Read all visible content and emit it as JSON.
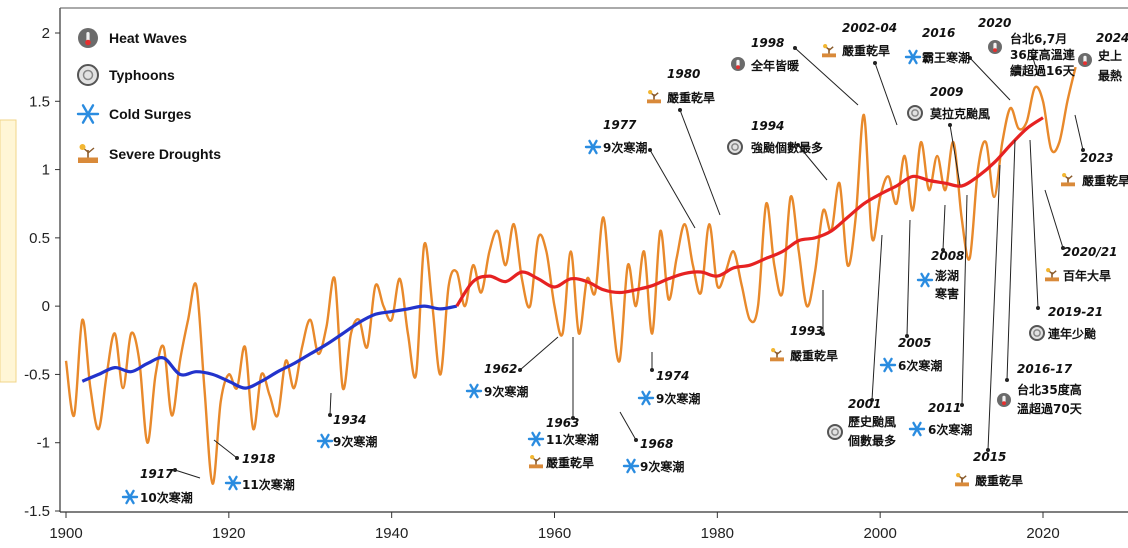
{
  "chart_data": {
    "type": "line",
    "title": "",
    "xlabel": "",
    "ylabel": "",
    "xlim": [
      1900,
      2026
    ],
    "ylim": [
      -1.5,
      2
    ],
    "x_ticks": [
      "1900",
      "1920",
      "1940",
      "1960",
      "1980",
      "2000",
      "2020"
    ],
    "y_ticks": [
      "-1.5",
      "-1",
      "-0.5",
      "0",
      "0.5",
      "1",
      "1.5",
      "2"
    ],
    "grid": false,
    "legend": {
      "placement": "top-left",
      "items": [
        {
          "label": "Heat Waves",
          "icon": "thermometer-icon"
        },
        {
          "label": "Typhoons",
          "icon": "typhoon-icon"
        },
        {
          "label": "Cold Surges",
          "icon": "snowflake-icon"
        },
        {
          "label": "Severe Droughts",
          "icon": "drought-icon"
        }
      ]
    },
    "series": [
      {
        "role": "annual",
        "color": "#e8892b",
        "x": [
          1900,
          1901,
          1902,
          1903,
          1904,
          1905,
          1906,
          1907,
          1908,
          1909,
          1910,
          1911,
          1912,
          1913,
          1914,
          1915,
          1916,
          1917,
          1918,
          1919,
          1920,
          1921,
          1922,
          1923,
          1924,
          1925,
          1926,
          1927,
          1928,
          1929,
          1930,
          1931,
          1932,
          1933,
          1934,
          1935,
          1936,
          1937,
          1938,
          1939,
          1940,
          1941,
          1942,
          1943,
          1944,
          1945,
          1946,
          1947,
          1948,
          1949,
          1950,
          1951,
          1952,
          1953,
          1954,
          1955,
          1956,
          1957,
          1958,
          1959,
          1960,
          1961,
          1962,
          1963,
          1964,
          1965,
          1966,
          1967,
          1968,
          1969,
          1970,
          1971,
          1972,
          1973,
          1974,
          1975,
          1976,
          1977,
          1978,
          1979,
          1980,
          1981,
          1982,
          1983,
          1984,
          1985,
          1986,
          1987,
          1988,
          1989,
          1990,
          1991,
          1992,
          1993,
          1994,
          1995,
          1996,
          1997,
          1998,
          1999,
          2000,
          2001,
          2002,
          2003,
          2004,
          2005,
          2006,
          2007,
          2008,
          2009,
          2010,
          2011,
          2012,
          2013,
          2014,
          2015,
          2016,
          2017,
          2018,
          2019,
          2020,
          2021,
          2022,
          2023,
          2024
        ],
        "y": [
          -0.4,
          -0.8,
          -0.1,
          -0.6,
          -0.9,
          -0.5,
          -0.2,
          -0.6,
          -0.2,
          -0.4,
          -1.0,
          -0.5,
          -0.3,
          -0.8,
          -0.4,
          -0.1,
          0.15,
          -0.6,
          -1.3,
          -0.7,
          -0.5,
          -0.6,
          -0.3,
          -0.9,
          -0.5,
          -0.65,
          -0.8,
          -0.4,
          -0.6,
          -0.3,
          -0.1,
          -0.35,
          -0.15,
          0.2,
          -0.6,
          -0.2,
          -0.1,
          -0.3,
          0.15,
          0.0,
          -0.1,
          0.2,
          -0.2,
          -0.5,
          0.45,
          0.0,
          -0.5,
          0.15,
          0.25,
          0.0,
          0.3,
          0.1,
          0.4,
          0.55,
          0.3,
          0.6,
          0.2,
          0.0,
          0.5,
          0.4,
          0.0,
          -0.2,
          0.4,
          -0.2,
          0.2,
          0.1,
          0.65,
          0.0,
          -0.4,
          0.3,
          0.0,
          0.4,
          -0.2,
          0.55,
          0.05,
          0.35,
          0.6,
          0.3,
          0.1,
          0.6,
          0.15,
          0.25,
          0.4,
          0.15,
          -0.1,
          0.0,
          0.75,
          0.3,
          0.1,
          0.8,
          0.4,
          0.0,
          0.25,
          0.7,
          0.55,
          0.9,
          0.3,
          0.65,
          1.4,
          0.5,
          0.8,
          0.95,
          0.75,
          1.1,
          0.7,
          1.2,
          0.85,
          1.1,
          0.85,
          1.2,
          0.65,
          0.35,
          1.0,
          1.2,
          0.8,
          1.2,
          1.45,
          1.3,
          1.35,
          1.6,
          1.5,
          1.15,
          1.2,
          1.5,
          1.75
        ]
      },
      {
        "role": "trend-early",
        "color": "#2233cc",
        "x": [
          1902,
          1904,
          1906,
          1908,
          1910,
          1912,
          1914,
          1916,
          1918,
          1920,
          1922,
          1924,
          1926,
          1928,
          1930,
          1932,
          1934,
          1936,
          1938,
          1940,
          1942,
          1944,
          1946,
          1948
        ],
        "y": [
          -0.55,
          -0.5,
          -0.45,
          -0.48,
          -0.42,
          -0.38,
          -0.5,
          -0.48,
          -0.5,
          -0.55,
          -0.6,
          -0.55,
          -0.48,
          -0.42,
          -0.35,
          -0.28,
          -0.2,
          -0.12,
          -0.06,
          -0.04,
          -0.02,
          0.0,
          -0.02,
          0.0
        ]
      },
      {
        "role": "trend-late",
        "color": "#e62222",
        "x": [
          1948,
          1950,
          1952,
          1954,
          1956,
          1958,
          1960,
          1962,
          1964,
          1966,
          1968,
          1970,
          1972,
          1974,
          1976,
          1978,
          1980,
          1982,
          1984,
          1986,
          1988,
          1990,
          1992,
          1994,
          1996,
          1998,
          2000,
          2002,
          2004,
          2006,
          2008,
          2010,
          2012,
          2014,
          2016,
          2018,
          2020
        ],
        "y": [
          0.0,
          0.18,
          0.22,
          0.18,
          0.25,
          0.2,
          0.14,
          0.2,
          0.18,
          0.12,
          0.1,
          0.12,
          0.15,
          0.2,
          0.24,
          0.25,
          0.22,
          0.28,
          0.3,
          0.35,
          0.4,
          0.48,
          0.5,
          0.55,
          0.65,
          0.75,
          0.82,
          0.88,
          0.95,
          0.92,
          0.9,
          0.88,
          0.95,
          1.05,
          1.18,
          1.3,
          1.38
        ]
      }
    ],
    "annotations": [
      {
        "year": "1917",
        "desc": "10次寒潮",
        "icon": "snowflake-icon"
      },
      {
        "year": "1918",
        "desc": "11次寒潮",
        "icon": "snowflake-icon"
      },
      {
        "year": "1934",
        "desc": "9次寒潮",
        "icon": "snowflake-icon"
      },
      {
        "year": "1962",
        "desc": "9次寒潮",
        "icon": "snowflake-icon"
      },
      {
        "year": "1963",
        "desc": "11次寒潮",
        "desc2": "嚴重乾旱",
        "icon": "snowflake-icon",
        "icon2": "drought-icon"
      },
      {
        "year": "1968",
        "desc": "9次寒潮",
        "icon": "snowflake-icon"
      },
      {
        "year": "1974",
        "desc": "9次寒潮",
        "icon": "snowflake-icon"
      },
      {
        "year": "1977",
        "desc": "9次寒潮",
        "icon": "snowflake-icon"
      },
      {
        "year": "1980",
        "desc": "嚴重乾旱",
        "icon": "drought-icon"
      },
      {
        "year": "1993",
        "desc": "嚴重乾旱",
        "icon": "drought-icon"
      },
      {
        "year": "1994",
        "desc": "強颱個數最多",
        "icon": "typhoon-icon"
      },
      {
        "year": "1998",
        "desc": "全年皆暖",
        "icon": "thermometer-icon"
      },
      {
        "year": "2001",
        "desc": "歷史颱風",
        "desc2": "個數最多",
        "icon": "typhoon-icon"
      },
      {
        "year": "2002-04",
        "desc": "嚴重乾旱",
        "icon": "drought-icon"
      },
      {
        "year": "2005",
        "desc": "6次寒潮",
        "icon": "snowflake-icon"
      },
      {
        "year": "2008",
        "desc": "澎湖",
        "desc2": "寒害",
        "icon": "snowflake-icon"
      },
      {
        "year": "2009",
        "desc": "莫拉克颱風",
        "icon": "typhoon-icon"
      },
      {
        "year": "2011",
        "desc": "6次寒潮",
        "icon": "snowflake-icon"
      },
      {
        "year": "2015",
        "desc": "嚴重乾旱",
        "icon": "drought-icon"
      },
      {
        "year": "2016",
        "desc": "霸王寒潮",
        "icon": "snowflake-icon"
      },
      {
        "year": "2016-17",
        "desc": "台北35度高",
        "desc2": "溫超過70天",
        "icon": "thermometer-icon"
      },
      {
        "year": "2019-21",
        "desc": "連年少颱",
        "icon": "typhoon-icon"
      },
      {
        "year": "2020",
        "desc": "台北6,7月",
        "desc2": "36度高溫連",
        "desc3": "續超過16天",
        "icon": "thermometer-icon"
      },
      {
        "year": "2020/21",
        "desc": "百年大旱",
        "icon": "drought-icon"
      },
      {
        "year": "2023",
        "desc": "嚴重乾旱",
        "icon": "drought-icon"
      },
      {
        "year": "2024",
        "desc": "史上",
        "desc2": "最熱",
        "icon": "thermometer-icon"
      }
    ]
  }
}
